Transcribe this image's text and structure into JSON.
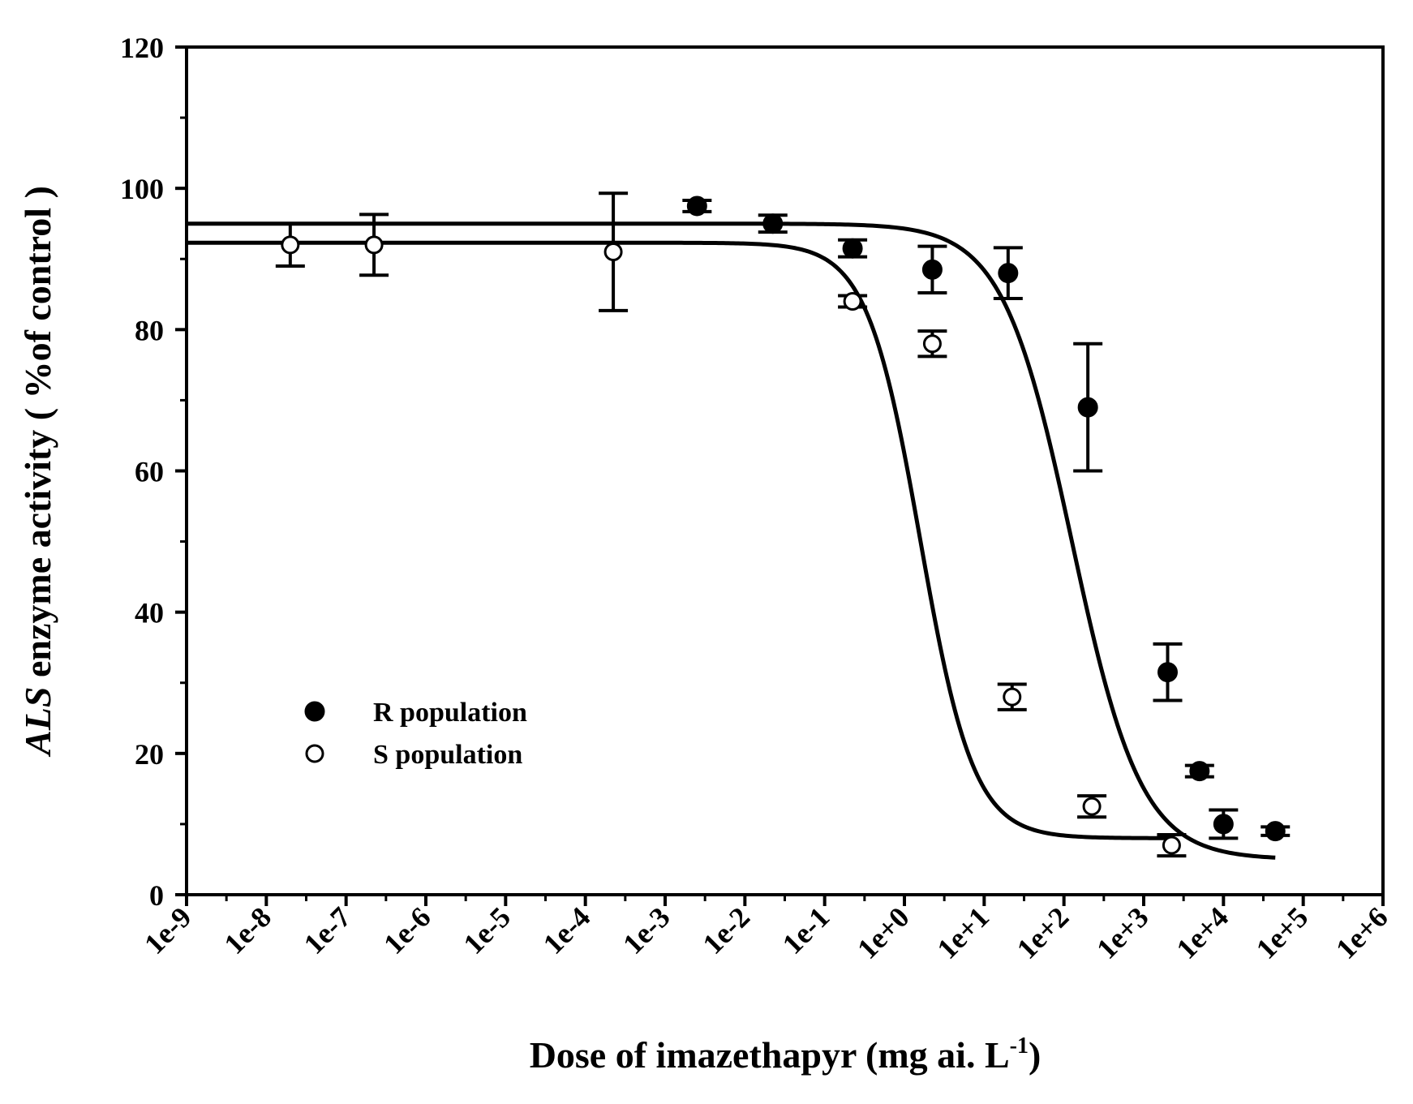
{
  "chart_data": {
    "type": "scatter",
    "title": "",
    "xlabel": "Dose of imazethapyr (mg ai. L",
    "xlabel_superscript": "-1",
    "xlabel_close": ")",
    "ylabel_italic": "ALS",
    "ylabel_rest": " enzyme activity ( %of control )",
    "x_scale": "log10",
    "xlim_log10": [
      -9,
      6
    ],
    "ylim": [
      0,
      120
    ],
    "x_tick_log10": [
      -9,
      -8,
      -7,
      -6,
      -5,
      -4,
      -3,
      -2,
      -1,
      0,
      1,
      2,
      3,
      4,
      5,
      6
    ],
    "x_tick_labels": [
      "1e-9",
      "1e-8",
      "1e-7",
      "1e-6",
      "1e-5",
      "1e-4",
      "1e-3",
      "1e-2",
      "1e-1",
      "1e+0",
      "1e+1",
      "1e+2",
      "1e+3",
      "1e+4",
      "1e+5",
      "1e+6"
    ],
    "y_ticks": [
      0,
      20,
      40,
      60,
      80,
      100,
      120
    ],
    "y_tick_labels": [
      "0",
      "20",
      "40",
      "60",
      "80",
      "100",
      "120"
    ],
    "legend": {
      "placement": "lower-left"
    },
    "series": [
      {
        "name": "R population",
        "marker": "filled-circle",
        "x_log10": [
          -2.6,
          -1.65,
          -0.65,
          0.35,
          1.3,
          2.3,
          3.3,
          3.7,
          4.0,
          4.65
        ],
        "y": [
          97.5,
          95.0,
          91.5,
          88.5,
          88.0,
          69.0,
          31.5,
          17.5,
          10.0,
          9.0
        ],
        "error": [
          0.8,
          1.2,
          1.2,
          3.3,
          3.6,
          9.0,
          4.0,
          0.8,
          2.0,
          0.6
        ],
        "fit": {
          "top": 95.0,
          "bottom": 5.0,
          "log_ec50": 2.1,
          "hill": 1.0,
          "x_from_log10": -9.0,
          "x_to_log10": 4.65
        }
      },
      {
        "name": "S population",
        "marker": "open-circle",
        "x_log10": [
          -7.7,
          -6.65,
          -3.65,
          -0.65,
          0.35,
          1.35,
          2.35,
          3.35
        ],
        "y": [
          92.0,
          92.0,
          91.0,
          84.0,
          78.0,
          28.0,
          12.5,
          7.0
        ],
        "error": [
          3.0,
          4.3,
          8.3,
          0.8,
          1.8,
          1.8,
          1.5,
          1.5
        ],
        "fit": {
          "top": 92.3,
          "bottom": 8.0,
          "log_ec50": 0.2,
          "hill": 1.3,
          "x_from_log10": -9.0,
          "x_to_log10": 3.35
        }
      }
    ]
  }
}
